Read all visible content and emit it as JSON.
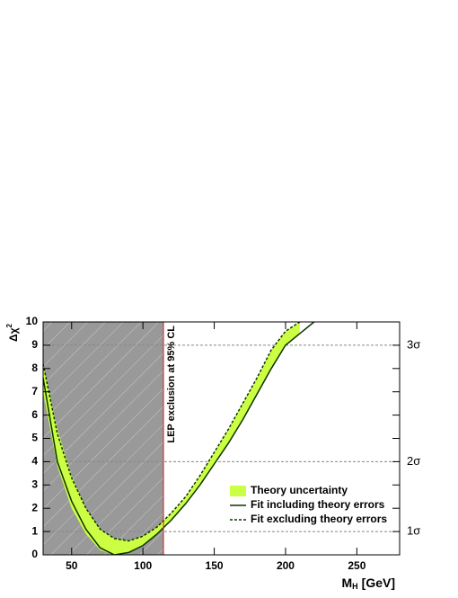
{
  "chart_data": {
    "type": "band-line",
    "x_label": "M",
    "x_label_sub": "H",
    "x_label_rest": "[GeV]",
    "y_label": "Δχ",
    "y_label_sup": "2",
    "x": [
      30,
      40,
      50,
      60,
      70,
      80,
      90,
      100,
      110,
      120,
      130,
      140,
      150,
      160,
      170,
      180,
      190,
      200,
      210,
      220
    ],
    "series": [
      {
        "name": "Theory uncertainty",
        "color": "#ccff44",
        "style": "band",
        "lower": [
          7.0,
          3.8,
          2.0,
          0.9,
          0.2,
          0.0,
          0.1,
          0.4,
          0.9,
          1.5,
          2.2,
          3.0,
          3.9,
          4.8,
          5.8,
          6.9,
          8.0,
          9.0,
          9.5,
          10.0
        ],
        "upper": [
          8.2,
          5.4,
          3.4,
          2.0,
          1.1,
          0.7,
          0.6,
          0.8,
          1.2,
          1.8,
          2.5,
          3.4,
          4.4,
          5.4,
          6.5,
          7.6,
          8.8,
          9.6,
          10.0,
          null
        ]
      },
      {
        "name": "Fit including theory errors",
        "color": "#0b3300",
        "style": "solid",
        "values": [
          7.6,
          4.0,
          2.3,
          1.1,
          0.3,
          0.0,
          0.1,
          0.4,
          0.9,
          1.5,
          2.2,
          3.0,
          3.9,
          4.8,
          5.8,
          6.9,
          8.0,
          9.0,
          9.5,
          10.0
        ]
      },
      {
        "name": "Fit excluding theory errors",
        "color": "#0b3300",
        "style": "dashed",
        "values": [
          8.2,
          5.2,
          3.3,
          2.0,
          1.1,
          0.7,
          0.6,
          0.8,
          1.2,
          1.8,
          2.5,
          3.4,
          4.4,
          5.4,
          6.5,
          7.6,
          8.8,
          9.6,
          10.0,
          null
        ]
      }
    ],
    "exclusion": {
      "label": "LEP exclusion at 95% CL",
      "value": 114.4,
      "color": "#cc2222",
      "fill": "#999999"
    },
    "sigma_lines": [
      {
        "value": 1,
        "label": "1σ"
      },
      {
        "value": 4,
        "label": "2σ"
      },
      {
        "value": 9,
        "label": "3σ"
      }
    ],
    "xlim": [
      30,
      280
    ],
    "ylim": [
      0,
      10
    ],
    "xticks": [
      50,
      100,
      150,
      200,
      250
    ],
    "yticks": [
      0,
      1,
      2,
      3,
      4,
      5,
      6,
      7,
      8,
      9,
      10
    ],
    "legend": "lower-right"
  }
}
